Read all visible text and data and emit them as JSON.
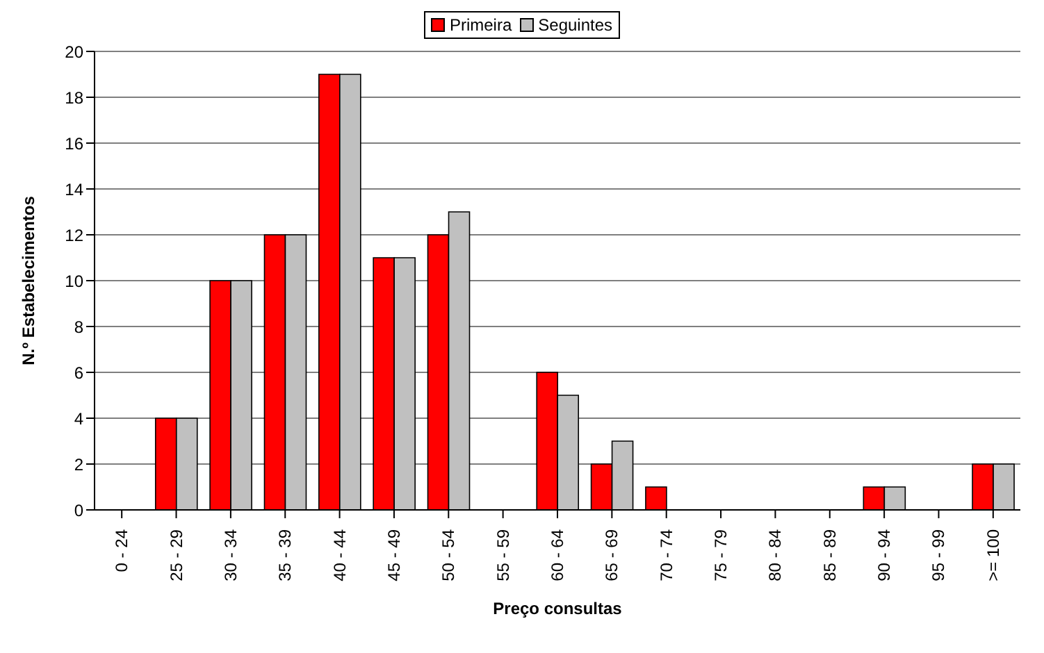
{
  "chart_data": {
    "type": "bar",
    "xlabel": "Preço consultas",
    "ylabel": "N.º Estabelecimentos",
    "categories": [
      "0 - 24",
      "25 - 29",
      "30 - 34",
      "35 - 39",
      "40 - 44",
      "45 - 49",
      "50 - 54",
      "55 - 59",
      "60 - 64",
      "65 - 69",
      "70 - 74",
      "75 - 79",
      "80 - 84",
      "85 - 89",
      "90 - 94",
      "95 - 99",
      ">= 100"
    ],
    "series": [
      {
        "name": "Primeira",
        "color": "#ff0000",
        "values": [
          0,
          4,
          10,
          12,
          19,
          11,
          12,
          0,
          6,
          2,
          1,
          0,
          0,
          0,
          1,
          0,
          2
        ]
      },
      {
        "name": "Seguintes",
        "color": "#c0c0c0",
        "values": [
          0,
          4,
          10,
          12,
          19,
          11,
          13,
          0,
          5,
          3,
          0,
          0,
          0,
          0,
          1,
          0,
          2
        ]
      }
    ],
    "ylim": [
      0,
      20
    ],
    "yticks": [
      0,
      2,
      4,
      6,
      8,
      10,
      12,
      14,
      16,
      18,
      20
    ],
    "grid": "y",
    "legend": "top"
  }
}
